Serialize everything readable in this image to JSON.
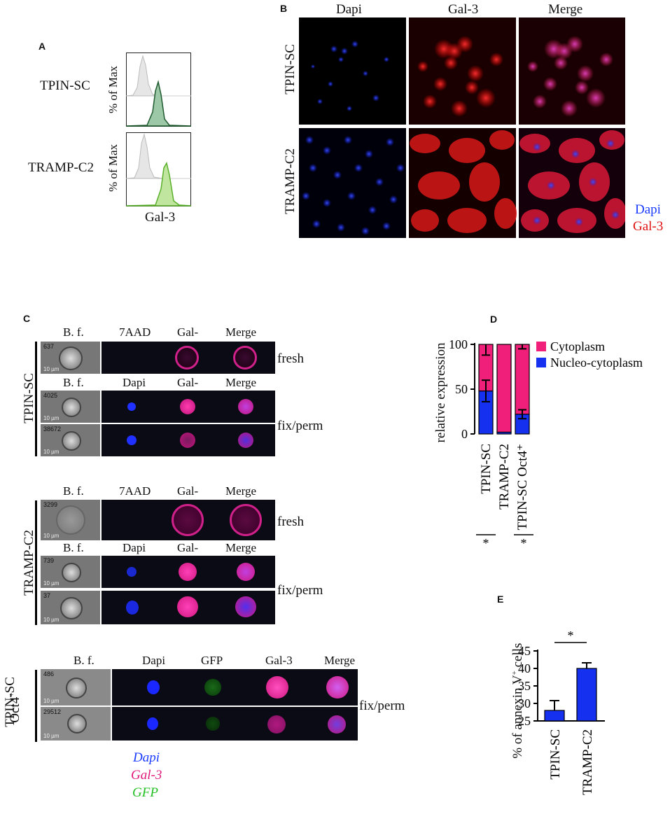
{
  "panel_a": {
    "label": "A",
    "rows": [
      "TPIN-SC",
      "TRAMP-C2"
    ],
    "ylabel": "% of Max",
    "xlabel": "Gal-3"
  },
  "panel_b": {
    "label": "B",
    "columns": [
      "Dapi",
      "Gal-3",
      "Merge"
    ],
    "rows": [
      "TPIN-SC",
      "TRAMP-C2"
    ],
    "legend": [
      {
        "text": "Dapi",
        "color": "#1a3cff"
      },
      {
        "text": "Gal-3",
        "color": "#e01010"
      }
    ]
  },
  "panel_c": {
    "label": "C",
    "tpin": {
      "row_label": "TPIN-SC",
      "fresh_headers": [
        "B. f.",
        "7AAD",
        "Gal-",
        "Merge"
      ],
      "fix_headers": [
        "B. f.",
        "Dapi",
        "Gal-",
        "Merge"
      ],
      "cell_ids": [
        "637",
        "4025",
        "38672"
      ],
      "fresh_label": "fresh",
      "fix_label": "fix/perm"
    },
    "tramp": {
      "row_label": "TRAMP-C2",
      "fresh_headers": [
        "B. f.",
        "7AAD",
        "Gal-",
        "Merge"
      ],
      "fix_headers": [
        "B. f.",
        "Dapi",
        "Gal-",
        "Merge"
      ],
      "cell_ids": [
        "3299",
        "739",
        "37"
      ],
      "fresh_label": "fresh",
      "fix_label": "fix/perm"
    },
    "oct4": {
      "row_label_1": "TPIN-SC",
      "row_label_2": "Oct4",
      "row_label_sup": "+",
      "headers": [
        "B. f.",
        "Dapi",
        "GFP",
        "Gal-3",
        "Merge"
      ],
      "cell_ids": [
        "486",
        "29512"
      ],
      "fix_label": "fix/perm"
    },
    "scale_text": "10 µm",
    "legend": [
      {
        "text": "Dapi",
        "color": "#1a3cff"
      },
      {
        "text": "Gal-3",
        "color": "#e0187a"
      },
      {
        "text": "GFP",
        "color": "#22c022"
      }
    ]
  },
  "chart_data": [
    {
      "panel": "D",
      "type": "bar",
      "stacked": true,
      "ylabel": "relative expression",
      "categories": [
        "TPIN-SC",
        "TRAMP-C2",
        "TPIN-SC Oct4+"
      ],
      "series": [
        {
          "name": "Nucleo-cytoplasm",
          "color": "#1530ee",
          "values": [
            48,
            2,
            22
          ],
          "errors": [
            12,
            0,
            5
          ]
        },
        {
          "name": "Cytoplasm",
          "color": "#f0207a",
          "values": [
            52,
            98,
            78
          ],
          "errors": [
            12,
            0,
            5
          ]
        }
      ],
      "ylim": [
        0,
        100
      ],
      "yticks": [
        0,
        50,
        100
      ],
      "significance": [
        "*",
        "*"
      ]
    },
    {
      "panel": "E",
      "type": "bar",
      "ylabel": "% of annexin V+ cells",
      "categories": [
        "TPIN-SC",
        "TRAMP-C2"
      ],
      "values": [
        28,
        40
      ],
      "errors": [
        2.8,
        1.6
      ],
      "color": "#1530ee",
      "ylim": [
        25,
        45
      ],
      "yticks": [
        25,
        30,
        35,
        40,
        45
      ],
      "significance": "*"
    }
  ],
  "panel_d_label": "D",
  "panel_e_label": "E",
  "panel_e_ylabel_main": "% of annexin V",
  "panel_e_ylabel_sup": "+",
  "panel_e_ylabel_tail": " cells"
}
